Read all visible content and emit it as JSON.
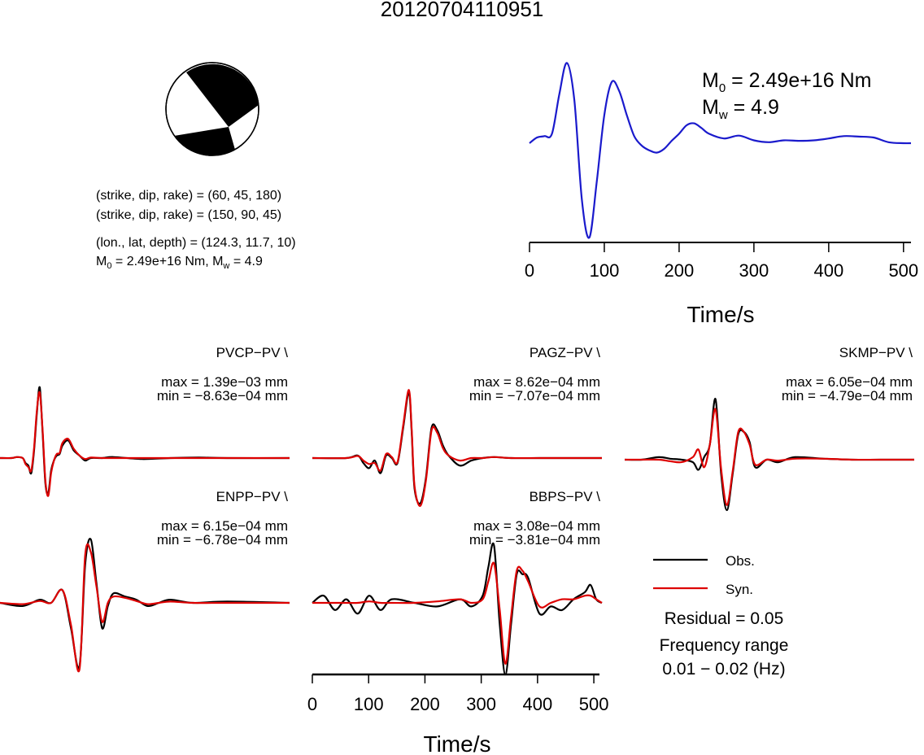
{
  "event_id": "20120704110951",
  "focal": {
    "line1": "(strike, dip, rake) = (60, 45, 180)",
    "line2": "(strike, dip, rake) = (150, 90, 45)",
    "line3": "(lon., lat, depth) = (124.3, 11.7, 10)",
    "m0_prefix": "M",
    "m0_sub": "0",
    "m0_value": " = 2.49e+16 Nm, M",
    "mw_sub": "w",
    "mw_value": " = 4.9"
  },
  "stf": {
    "m0_label": "M",
    "m0_sub": "0",
    "m0_text": " = 2.49e+16 Nm",
    "mw_label": "M",
    "mw_sub": "w",
    "mw_text": " = 4.9",
    "xlabel": "Time/s",
    "xticks": [
      "0",
      "100",
      "200",
      "300",
      "400",
      "500"
    ]
  },
  "bottom_axis": {
    "xlabel": "Time/s",
    "xticks": [
      "0",
      "100",
      "200",
      "300",
      "400",
      "500"
    ]
  },
  "legend": {
    "obs": "Obs.",
    "syn": "Syn.",
    "residual": "Residual = 0.05",
    "freq_title": "Frequency range",
    "freq_value": "0.01 − 0.02 (Hz)"
  },
  "colors": {
    "obs": "#000000",
    "syn": "#dd0000",
    "stf": "#1a1acc"
  },
  "chart_data": [
    {
      "type": "line",
      "name": "source time function",
      "xlabel": "Time/s",
      "xlim": [
        0,
        510
      ],
      "series": [
        {
          "x": [
            0,
            10,
            20,
            30,
            40,
            50,
            60,
            70,
            80,
            90,
            100,
            110,
            120,
            130,
            140,
            150,
            160,
            170,
            180,
            190,
            200,
            210,
            220,
            230,
            240,
            260,
            280,
            300,
            320,
            340,
            360,
            380,
            400,
            420,
            440,
            460,
            480,
            500,
            510
          ],
          "y": [
            0.0,
            0.12,
            0.15,
            0.2,
            1.05,
            1.7,
            0.9,
            -1.2,
            -2.0,
            -0.8,
            0.6,
            1.3,
            1.1,
            0.6,
            0.15,
            -0.05,
            -0.15,
            -0.2,
            -0.12,
            0.05,
            0.2,
            0.38,
            0.42,
            0.32,
            0.2,
            0.1,
            0.16,
            0.06,
            0.02,
            0.06,
            0.05,
            0.06,
            0.1,
            0.15,
            0.14,
            0.12,
            0.02,
            0.0,
            0.0
          ]
        }
      ]
    },
    {
      "type": "line",
      "station": "PVCP−PV \\",
      "max": "max = 1.39e−03 mm",
      "min": "min = −8.63e−04 mm",
      "x": [
        0,
        20,
        30,
        40,
        45,
        50,
        55,
        60,
        65,
        70,
        75,
        80,
        85,
        90,
        95,
        100,
        105,
        110,
        120,
        130,
        140,
        150,
        160,
        180,
        200,
        250,
        300,
        350,
        400,
        510
      ],
      "series": [
        {
          "name": "Obs.",
          "values": [
            0.0,
            0.0,
            0.02,
            0.0,
            -0.1,
            -0.15,
            -0.3,
            0.15,
            0.9,
            1.4,
            0.5,
            -0.5,
            -0.7,
            -0.25,
            -0.05,
            0.05,
            0.08,
            0.25,
            0.35,
            0.15,
            0.05,
            -0.05,
            0.0,
            0.0,
            0.02,
            -0.02,
            0.0,
            0.01,
            0.0,
            0.0
          ]
        },
        {
          "name": "Syn.",
          "values": [
            0.0,
            0.0,
            0.02,
            0.0,
            -0.12,
            -0.18,
            -0.25,
            0.2,
            0.95,
            1.3,
            0.55,
            -0.45,
            -0.75,
            -0.3,
            -0.05,
            0.08,
            0.1,
            0.3,
            0.38,
            0.18,
            0.05,
            -0.02,
            0.01,
            0.0,
            0.0,
            0.0,
            0.0,
            0.0,
            0.0,
            0.0
          ]
        }
      ]
    },
    {
      "type": "line",
      "station": "PAGZ−PV \\",
      "max": "max = 8.62e−04 mm",
      "min": "min = −7.07e−04 mm",
      "x": [
        0,
        60,
        80,
        90,
        100,
        110,
        120,
        130,
        140,
        150,
        160,
        170,
        175,
        180,
        190,
        200,
        210,
        220,
        230,
        240,
        260,
        280,
        300,
        320,
        350,
        400,
        450,
        510
      ],
      "series": [
        {
          "name": "Obs.",
          "values": [
            0.0,
            0.0,
            0.05,
            -0.1,
            -0.2,
            -0.05,
            -0.3,
            0.05,
            0.0,
            -0.1,
            0.6,
            1.3,
            0.5,
            -0.6,
            -0.9,
            -0.4,
            0.6,
            0.55,
            0.25,
            0.05,
            -0.15,
            -0.05,
            0.0,
            0.02,
            0.0,
            0.0,
            0.0,
            0.0
          ]
        },
        {
          "name": "Syn.",
          "values": [
            0.0,
            0.0,
            0.04,
            -0.05,
            -0.12,
            -0.1,
            -0.25,
            0.08,
            0.02,
            -0.08,
            0.65,
            1.35,
            0.55,
            -0.55,
            -0.95,
            -0.45,
            0.55,
            0.5,
            0.2,
            0.05,
            -0.05,
            0.0,
            0.0,
            0.02,
            0.0,
            0.0,
            0.0,
            0.0
          ]
        }
      ]
    },
    {
      "type": "line",
      "station": "SKMP−PV \\",
      "max": "max = 6.05e−04 mm",
      "min": "min = −4.79e−04 mm",
      "x": [
        0,
        30,
        60,
        80,
        100,
        120,
        130,
        140,
        150,
        160,
        170,
        180,
        190,
        200,
        210,
        220,
        230,
        250,
        270,
        300,
        350,
        400,
        450,
        510
      ],
      "series": [
        {
          "name": "Obs.",
          "values": [
            0.0,
            0.0,
            0.05,
            0.02,
            0.0,
            -0.05,
            -0.2,
            0.05,
            0.3,
            1.2,
            -0.3,
            -1.0,
            -0.3,
            0.5,
            0.55,
            0.35,
            -0.15,
            0.0,
            -0.05,
            0.05,
            0.02,
            0.0,
            0.0,
            0.0
          ]
        },
        {
          "name": "Syn.",
          "values": [
            0.0,
            0.0,
            0.0,
            -0.03,
            -0.05,
            0.05,
            0.2,
            -0.15,
            0.3,
            1.0,
            -0.2,
            -0.9,
            -0.25,
            0.55,
            0.55,
            0.3,
            -0.1,
            0.0,
            -0.02,
            0.02,
            0.02,
            0.0,
            0.0,
            0.0
          ]
        }
      ]
    },
    {
      "type": "line",
      "station": "ENPP−PV \\",
      "max": "max = 6.15e−04 mm",
      "min": "min = −6.78e−04 mm",
      "x": [
        0,
        40,
        70,
        90,
        110,
        125,
        140,
        150,
        160,
        170,
        180,
        190,
        200,
        220,
        240,
        260,
        280,
        300,
        340,
        400,
        510
      ],
      "series": [
        {
          "name": "Obs.",
          "values": [
            0.0,
            -0.05,
            0.05,
            0.0,
            0.2,
            -0.4,
            -1.0,
            0.6,
            1.0,
            0.3,
            -0.4,
            -0.05,
            0.15,
            0.1,
            0.05,
            -0.05,
            0.0,
            0.05,
            0.0,
            0.02,
            0.0
          ]
        },
        {
          "name": "Syn.",
          "values": [
            0.0,
            -0.02,
            0.03,
            0.0,
            0.2,
            -0.35,
            -1.05,
            0.75,
            0.8,
            0.25,
            -0.3,
            0.0,
            0.1,
            0.08,
            0.03,
            -0.02,
            0.0,
            0.02,
            0.0,
            0.0,
            0.0
          ]
        }
      ]
    },
    {
      "type": "line",
      "station": "BBPS−PV \\",
      "max": "max = 3.08e−04 mm",
      "min": "min = −3.81e−04 mm",
      "xlabel": "Time/s",
      "xlim": [
        0,
        510
      ],
      "x": [
        0,
        20,
        40,
        60,
        80,
        100,
        120,
        140,
        180,
        220,
        260,
        280,
        300,
        310,
        320,
        330,
        340,
        350,
        360,
        370,
        380,
        400,
        420,
        440,
        460,
        480,
        490,
        500,
        510
      ],
      "series": [
        {
          "name": "Obs.",
          "values": [
            0.0,
            0.1,
            -0.1,
            0.05,
            -0.15,
            0.1,
            -0.1,
            0.05,
            0.0,
            -0.05,
            0.05,
            -0.05,
            0.1,
            0.5,
            0.8,
            -0.3,
            -1.0,
            -0.3,
            0.4,
            0.4,
            0.35,
            -0.15,
            -0.05,
            -0.1,
            0.05,
            0.15,
            0.25,
            0.05,
            0.0
          ]
        },
        {
          "name": "Syn.",
          "values": [
            0.0,
            0.0,
            0.0,
            0.0,
            0.0,
            0.02,
            0.0,
            0.0,
            0.0,
            0.02,
            0.05,
            0.0,
            0.05,
            0.3,
            0.55,
            -0.1,
            -0.85,
            -0.2,
            0.45,
            0.45,
            0.3,
            -0.05,
            0.0,
            0.05,
            0.05,
            0.1,
            0.1,
            0.05,
            0.0
          ]
        }
      ]
    }
  ]
}
